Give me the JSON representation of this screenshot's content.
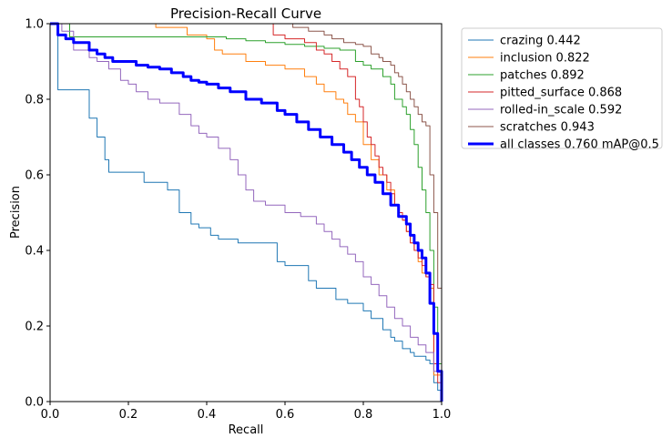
{
  "chart_data": {
    "type": "line",
    "title": "Precision-Recall Curve",
    "xlabel": "Recall",
    "ylabel": "Precision",
    "xlim": [
      0,
      1
    ],
    "ylim": [
      0,
      1
    ],
    "xticks": [
      "0.0",
      "0.2",
      "0.4",
      "0.6",
      "0.8",
      "1.0"
    ],
    "yticks": [
      "0.0",
      "0.2",
      "0.4",
      "0.6",
      "0.8",
      "1.0"
    ],
    "grid": false,
    "legend_position": "outside-top-right",
    "series": [
      {
        "name": "crazing 0.442",
        "color": "#1f77b4",
        "width": 1,
        "x": [
          0,
          0.02,
          0.02,
          0.1,
          0.1,
          0.12,
          0.12,
          0.14,
          0.14,
          0.15,
          0.15,
          0.2,
          0.24,
          0.24,
          0.3,
          0.3,
          0.33,
          0.36,
          0.36,
          0.38,
          0.41,
          0.43,
          0.48,
          0.5,
          0.55,
          0.58,
          0.6,
          0.6,
          0.66,
          0.68,
          0.73,
          0.76,
          0.8,
          0.82,
          0.85,
          0.87,
          0.88,
          0.9,
          0.92,
          0.93,
          0.95,
          0.96,
          0.97,
          0.98,
          0.99,
          1.0
        ],
        "y": [
          1.0,
          1.0,
          0.825,
          0.825,
          0.75,
          0.74,
          0.7,
          0.68,
          0.64,
          0.62,
          0.607,
          0.607,
          0.607,
          0.58,
          0.575,
          0.56,
          0.5,
          0.49,
          0.47,
          0.46,
          0.44,
          0.43,
          0.42,
          0.42,
          0.42,
          0.37,
          0.36,
          0.36,
          0.32,
          0.3,
          0.27,
          0.26,
          0.24,
          0.22,
          0.19,
          0.17,
          0.16,
          0.14,
          0.13,
          0.12,
          0.12,
          0.11,
          0.1,
          0.05,
          0.03,
          0.0
        ]
      },
      {
        "name": "inclusion 0.822",
        "color": "#ff7f0e",
        "width": 1,
        "x": [
          0,
          0.05,
          0.1,
          0.2,
          0.27,
          0.27,
          0.35,
          0.4,
          0.42,
          0.44,
          0.5,
          0.55,
          0.6,
          0.65,
          0.68,
          0.7,
          0.73,
          0.75,
          0.76,
          0.78,
          0.8,
          0.82,
          0.84,
          0.86,
          0.88,
          0.89,
          0.9,
          0.91,
          0.92,
          0.93,
          0.94,
          0.95,
          0.96,
          0.97,
          0.98,
          1.0
        ],
        "y": [
          1.0,
          1.0,
          1.0,
          1.0,
          1.0,
          0.99,
          0.97,
          0.96,
          0.93,
          0.92,
          0.9,
          0.89,
          0.88,
          0.86,
          0.84,
          0.82,
          0.8,
          0.79,
          0.76,
          0.74,
          0.68,
          0.64,
          0.6,
          0.56,
          0.52,
          0.5,
          0.48,
          0.45,
          0.42,
          0.4,
          0.37,
          0.34,
          0.33,
          0.3,
          0.07,
          0.0
        ]
      },
      {
        "name": "patches 0.892",
        "color": "#2ca02c",
        "width": 1,
        "x": [
          0,
          0.05,
          0.05,
          0.1,
          0.2,
          0.3,
          0.35,
          0.4,
          0.45,
          0.5,
          0.55,
          0.6,
          0.65,
          0.7,
          0.74,
          0.78,
          0.8,
          0.82,
          0.85,
          0.87,
          0.88,
          0.9,
          0.91,
          0.92,
          0.93,
          0.94,
          0.95,
          0.96,
          0.97,
          0.98,
          0.99,
          1.0
        ],
        "y": [
          1.0,
          1.0,
          0.965,
          0.965,
          0.965,
          0.965,
          0.965,
          0.965,
          0.96,
          0.955,
          0.95,
          0.945,
          0.94,
          0.935,
          0.93,
          0.9,
          0.89,
          0.88,
          0.86,
          0.84,
          0.8,
          0.78,
          0.76,
          0.72,
          0.68,
          0.62,
          0.56,
          0.5,
          0.4,
          0.25,
          0.1,
          0.0
        ]
      },
      {
        "name": "pitted_surface 0.868",
        "color": "#d62728",
        "width": 1,
        "x": [
          0.57,
          0.57,
          0.6,
          0.65,
          0.68,
          0.7,
          0.72,
          0.74,
          0.76,
          0.78,
          0.79,
          0.8,
          0.81,
          0.82,
          0.83,
          0.84,
          0.85,
          0.86,
          0.87,
          0.88,
          0.89,
          0.9,
          0.91,
          0.92,
          0.93,
          0.94,
          0.95,
          0.96,
          0.97,
          0.98,
          0.99,
          1.0
        ],
        "y": [
          1.0,
          0.97,
          0.96,
          0.95,
          0.93,
          0.92,
          0.9,
          0.88,
          0.86,
          0.8,
          0.78,
          0.74,
          0.7,
          0.68,
          0.65,
          0.62,
          0.6,
          0.58,
          0.55,
          0.52,
          0.5,
          0.48,
          0.45,
          0.42,
          0.4,
          0.38,
          0.36,
          0.33,
          0.31,
          0.1,
          0.05,
          0.0
        ]
      },
      {
        "name": "rolled-in_scale 0.592",
        "color": "#9467bd",
        "width": 1,
        "x": [
          0,
          0.03,
          0.06,
          0.1,
          0.12,
          0.15,
          0.18,
          0.2,
          0.22,
          0.25,
          0.28,
          0.33,
          0.36,
          0.38,
          0.4,
          0.43,
          0.46,
          0.48,
          0.5,
          0.52,
          0.55,
          0.6,
          0.64,
          0.68,
          0.7,
          0.72,
          0.74,
          0.76,
          0.78,
          0.8,
          0.82,
          0.84,
          0.86,
          0.88,
          0.9,
          0.92,
          0.94,
          0.96,
          0.98,
          1.0
        ],
        "y": [
          1.0,
          0.98,
          0.93,
          0.91,
          0.9,
          0.88,
          0.85,
          0.84,
          0.82,
          0.8,
          0.79,
          0.76,
          0.73,
          0.71,
          0.7,
          0.67,
          0.64,
          0.6,
          0.56,
          0.53,
          0.52,
          0.5,
          0.49,
          0.47,
          0.45,
          0.43,
          0.41,
          0.39,
          0.37,
          0.33,
          0.31,
          0.28,
          0.25,
          0.22,
          0.2,
          0.17,
          0.15,
          0.13,
          0.08,
          0.0
        ]
      },
      {
        "name": "scratches 0.943",
        "color": "#8c564b",
        "width": 1,
        "x": [
          0.6,
          0.62,
          0.62,
          0.66,
          0.7,
          0.72,
          0.75,
          0.78,
          0.8,
          0.82,
          0.84,
          0.85,
          0.87,
          0.88,
          0.89,
          0.9,
          0.91,
          0.92,
          0.93,
          0.94,
          0.95,
          0.96,
          0.97,
          0.98,
          0.99,
          1.0
        ],
        "y": [
          1.0,
          1.0,
          0.99,
          0.98,
          0.97,
          0.96,
          0.95,
          0.945,
          0.94,
          0.92,
          0.91,
          0.9,
          0.89,
          0.87,
          0.86,
          0.84,
          0.82,
          0.8,
          0.78,
          0.76,
          0.74,
          0.73,
          0.6,
          0.5,
          0.3,
          0.0
        ]
      },
      {
        "name": "all classes 0.760 mAP@0.5",
        "color": "#0000ff",
        "width": 3,
        "x": [
          0,
          0.02,
          0.02,
          0.04,
          0.06,
          0.1,
          0.12,
          0.14,
          0.16,
          0.18,
          0.2,
          0.22,
          0.25,
          0.28,
          0.31,
          0.34,
          0.36,
          0.38,
          0.4,
          0.43,
          0.46,
          0.5,
          0.54,
          0.58,
          0.6,
          0.63,
          0.66,
          0.69,
          0.72,
          0.75,
          0.77,
          0.79,
          0.81,
          0.83,
          0.85,
          0.87,
          0.89,
          0.91,
          0.92,
          0.93,
          0.94,
          0.95,
          0.96,
          0.97,
          0.98,
          0.99,
          1.0
        ],
        "y": [
          1.0,
          1.0,
          0.97,
          0.96,
          0.95,
          0.93,
          0.92,
          0.91,
          0.9,
          0.9,
          0.9,
          0.89,
          0.885,
          0.88,
          0.87,
          0.86,
          0.85,
          0.845,
          0.84,
          0.83,
          0.82,
          0.8,
          0.79,
          0.77,
          0.76,
          0.74,
          0.72,
          0.7,
          0.68,
          0.66,
          0.64,
          0.62,
          0.6,
          0.58,
          0.55,
          0.52,
          0.49,
          0.47,
          0.44,
          0.42,
          0.4,
          0.38,
          0.34,
          0.26,
          0.18,
          0.08,
          0.0
        ]
      }
    ]
  }
}
